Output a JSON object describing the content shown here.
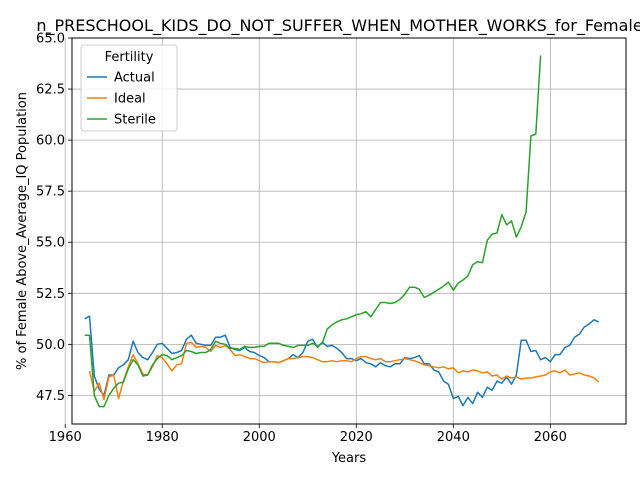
{
  "chart_data": {
    "type": "line",
    "title": "n_PRESCHOOL_KIDS_DO_NOT_SUFFER_WHEN_MOTHER_WORKS_for_Female_A",
    "xlabel": "Years",
    "ylabel": "% of Female Above_Average_IQ Population",
    "xlim": [
      1961.4,
      2075.6
    ],
    "ylim": [
      46.1,
      65.0
    ],
    "xticks": [
      1960,
      1980,
      2000,
      2020,
      2040,
      2060
    ],
    "yticks": [
      47.5,
      50.0,
      52.5,
      55.0,
      57.5,
      60.0,
      62.5,
      65.0
    ],
    "xtick_labels": [
      "1960",
      "1980",
      "2000",
      "2020",
      "2040",
      "2060"
    ],
    "ytick_labels": [
      "47.5",
      "50.0",
      "52.5",
      "55.0",
      "57.5",
      "60.0",
      "62.5",
      "65.0"
    ],
    "grid": true,
    "legend": {
      "title": "Fertility",
      "placement": "upper left"
    },
    "series": [
      {
        "name": "Actual",
        "color": "#1f77b4",
        "x": [
          1964,
          1965,
          1966,
          1967,
          1968,
          1969,
          1970,
          1971,
          1972,
          1973,
          1974,
          1975,
          1976,
          1977,
          1978,
          1979,
          1980,
          1981,
          1982,
          1983,
          1984,
          1985,
          1986,
          1987,
          1988,
          1989,
          1990,
          1991,
          1992,
          1993,
          1994,
          1995,
          1996,
          1997,
          1998,
          1999,
          2000,
          2001,
          2002,
          2003,
          2004,
          2005,
          2006,
          2007,
          2008,
          2009,
          2010,
          2011,
          2012,
          2013,
          2014,
          2015,
          2016,
          2017,
          2018,
          2019,
          2020,
          2021,
          2022,
          2023,
          2024,
          2025,
          2026,
          2027,
          2028,
          2029,
          2030,
          2031,
          2032,
          2033,
          2034,
          2035,
          2036,
          2037,
          2038,
          2039,
          2040,
          2041,
          2042,
          2043,
          2044,
          2045,
          2046,
          2047,
          2048,
          2049,
          2050,
          2051,
          2052,
          2053,
          2054,
          2055,
          2056,
          2057,
          2058,
          2059,
          2060,
          2061,
          2062,
          2063,
          2064,
          2065,
          2066,
          2067,
          2068,
          2069,
          2070
        ],
        "y": [
          51.25,
          51.38,
          48.45,
          47.8,
          47.5,
          48.5,
          48.5,
          48.85,
          49.0,
          49.25,
          50.15,
          49.6,
          49.35,
          49.25,
          49.6,
          50.0,
          50.05,
          49.8,
          49.55,
          49.6,
          49.7,
          50.25,
          50.45,
          50.05,
          50.0,
          49.95,
          49.95,
          50.35,
          50.35,
          50.45,
          49.85,
          49.75,
          49.7,
          49.85,
          49.65,
          49.6,
          49.45,
          49.35,
          49.15,
          49.15,
          49.1,
          49.2,
          49.3,
          49.5,
          49.35,
          49.6,
          50.15,
          50.25,
          49.85,
          50.1,
          49.9,
          49.95,
          49.8,
          49.6,
          49.3,
          49.3,
          49.2,
          49.3,
          49.1,
          49.05,
          48.9,
          49.1,
          48.95,
          48.9,
          49.05,
          49.05,
          49.35,
          49.3,
          49.35,
          49.45,
          49.05,
          49.05,
          48.75,
          48.65,
          48.2,
          48.05,
          47.35,
          47.45,
          47.0,
          47.4,
          47.1,
          47.65,
          47.4,
          47.9,
          47.75,
          48.2,
          48.1,
          48.4,
          48.05,
          48.5,
          50.2,
          50.2,
          49.65,
          49.7,
          49.25,
          49.35,
          49.15,
          49.5,
          49.5,
          49.85,
          49.95,
          50.35,
          50.5,
          50.85,
          51.0,
          51.2,
          51.1
        ]
      },
      {
        "name": "Ideal",
        "color": "#ff7f0e",
        "x": [
          1965,
          1966,
          1967,
          1968,
          1969,
          1970,
          1971,
          1972,
          1973,
          1974,
          1975,
          1976,
          1977,
          1978,
          1979,
          1980,
          1981,
          1982,
          1983,
          1984,
          1985,
          1986,
          1987,
          1988,
          1989,
          1990,
          1991,
          1992,
          1993,
          1994,
          1995,
          1996,
          1997,
          1998,
          1999,
          2000,
          2001,
          2002,
          2003,
          2004,
          2005,
          2006,
          2007,
          2008,
          2009,
          2010,
          2011,
          2012,
          2013,
          2014,
          2015,
          2016,
          2017,
          2018,
          2019,
          2020,
          2021,
          2022,
          2023,
          2024,
          2025,
          2026,
          2027,
          2028,
          2029,
          2030,
          2031,
          2032,
          2033,
          2034,
          2035,
          2036,
          2037,
          2038,
          2039,
          2040,
          2041,
          2042,
          2043,
          2044,
          2045,
          2046,
          2047,
          2048,
          2049,
          2050,
          2051,
          2052,
          2053,
          2054,
          2055,
          2056,
          2057,
          2058,
          2059,
          2060,
          2061,
          2062,
          2063,
          2064,
          2065,
          2066,
          2067,
          2068,
          2069,
          2070
        ],
        "y": [
          48.7,
          47.7,
          48.1,
          47.3,
          48.4,
          48.5,
          47.35,
          48.2,
          48.9,
          49.5,
          49.05,
          48.55,
          48.5,
          48.9,
          49.45,
          49.35,
          49.05,
          48.7,
          49.0,
          49.05,
          50.05,
          50.1,
          49.85,
          49.9,
          49.85,
          49.65,
          49.95,
          49.85,
          49.95,
          49.75,
          49.45,
          49.5,
          49.4,
          49.3,
          49.3,
          49.2,
          49.1,
          49.15,
          49.15,
          49.1,
          49.2,
          49.3,
          49.3,
          49.35,
          49.4,
          49.4,
          49.35,
          49.25,
          49.15,
          49.15,
          49.2,
          49.15,
          49.2,
          49.2,
          49.15,
          49.3,
          49.4,
          49.4,
          49.3,
          49.25,
          49.3,
          49.15,
          49.15,
          49.2,
          49.25,
          49.3,
          49.25,
          49.2,
          49.1,
          49.0,
          48.95,
          48.9,
          48.85,
          48.9,
          48.8,
          48.85,
          48.6,
          48.7,
          48.65,
          48.75,
          48.7,
          48.6,
          48.65,
          48.45,
          48.5,
          48.3,
          48.45,
          48.35,
          48.4,
          48.3,
          48.35,
          48.35,
          48.4,
          48.45,
          48.5,
          48.65,
          48.7,
          48.6,
          48.75,
          48.5,
          48.55,
          48.6,
          48.5,
          48.45,
          48.35,
          48.15
        ]
      },
      {
        "name": "Sterile",
        "color": "#2ca02c",
        "x": [
          1964,
          1965,
          1966,
          1967,
          1968,
          1969,
          1970,
          1971,
          1972,
          1973,
          1974,
          1975,
          1976,
          1977,
          1978,
          1979,
          1980,
          1981,
          1982,
          1983,
          1984,
          1985,
          1986,
          1987,
          1988,
          1989,
          1990,
          1991,
          1992,
          1993,
          1994,
          1995,
          1996,
          1997,
          1998,
          1999,
          2000,
          2001,
          2002,
          2003,
          2004,
          2005,
          2006,
          2007,
          2008,
          2009,
          2010,
          2011,
          2012,
          2013,
          2014,
          2015,
          2016,
          2017,
          2018,
          2019,
          2020,
          2021,
          2022,
          2023,
          2024,
          2025,
          2026,
          2027,
          2028,
          2029,
          2030,
          2031,
          2032,
          2033,
          2034,
          2035,
          2036,
          2037,
          2038,
          2039,
          2040,
          2041,
          2042,
          2043,
          2044,
          2045,
          2046,
          2047,
          2048,
          2049,
          2050,
          2051,
          2052,
          2053,
          2054,
          2055,
          2056,
          2057,
          2058
        ],
        "y": [
          50.45,
          50.45,
          47.5,
          46.95,
          46.95,
          47.5,
          47.85,
          48.1,
          48.15,
          48.8,
          49.25,
          49.0,
          48.45,
          48.5,
          49.0,
          49.3,
          49.5,
          49.45,
          49.25,
          49.35,
          49.45,
          49.7,
          49.65,
          49.55,
          49.6,
          49.6,
          49.75,
          50.15,
          50.05,
          50.0,
          49.8,
          49.8,
          49.75,
          49.9,
          49.85,
          49.85,
          49.9,
          49.9,
          50.05,
          50.05,
          50.05,
          49.95,
          49.9,
          49.85,
          49.95,
          49.95,
          49.95,
          50.05,
          49.9,
          50.05,
          50.75,
          50.95,
          51.1,
          51.2,
          51.25,
          51.35,
          51.45,
          51.5,
          51.6,
          51.35,
          51.7,
          52.05,
          52.05,
          52.0,
          52.05,
          52.2,
          52.45,
          52.8,
          52.8,
          52.7,
          52.3,
          52.4,
          52.55,
          52.7,
          52.85,
          53.05,
          52.65,
          53.0,
          53.15,
          53.35,
          53.9,
          54.05,
          54.0,
          55.1,
          55.4,
          55.45,
          56.35,
          55.85,
          56.05,
          55.25,
          55.75,
          56.5,
          60.2,
          60.3,
          64.15
        ]
      }
    ]
  }
}
